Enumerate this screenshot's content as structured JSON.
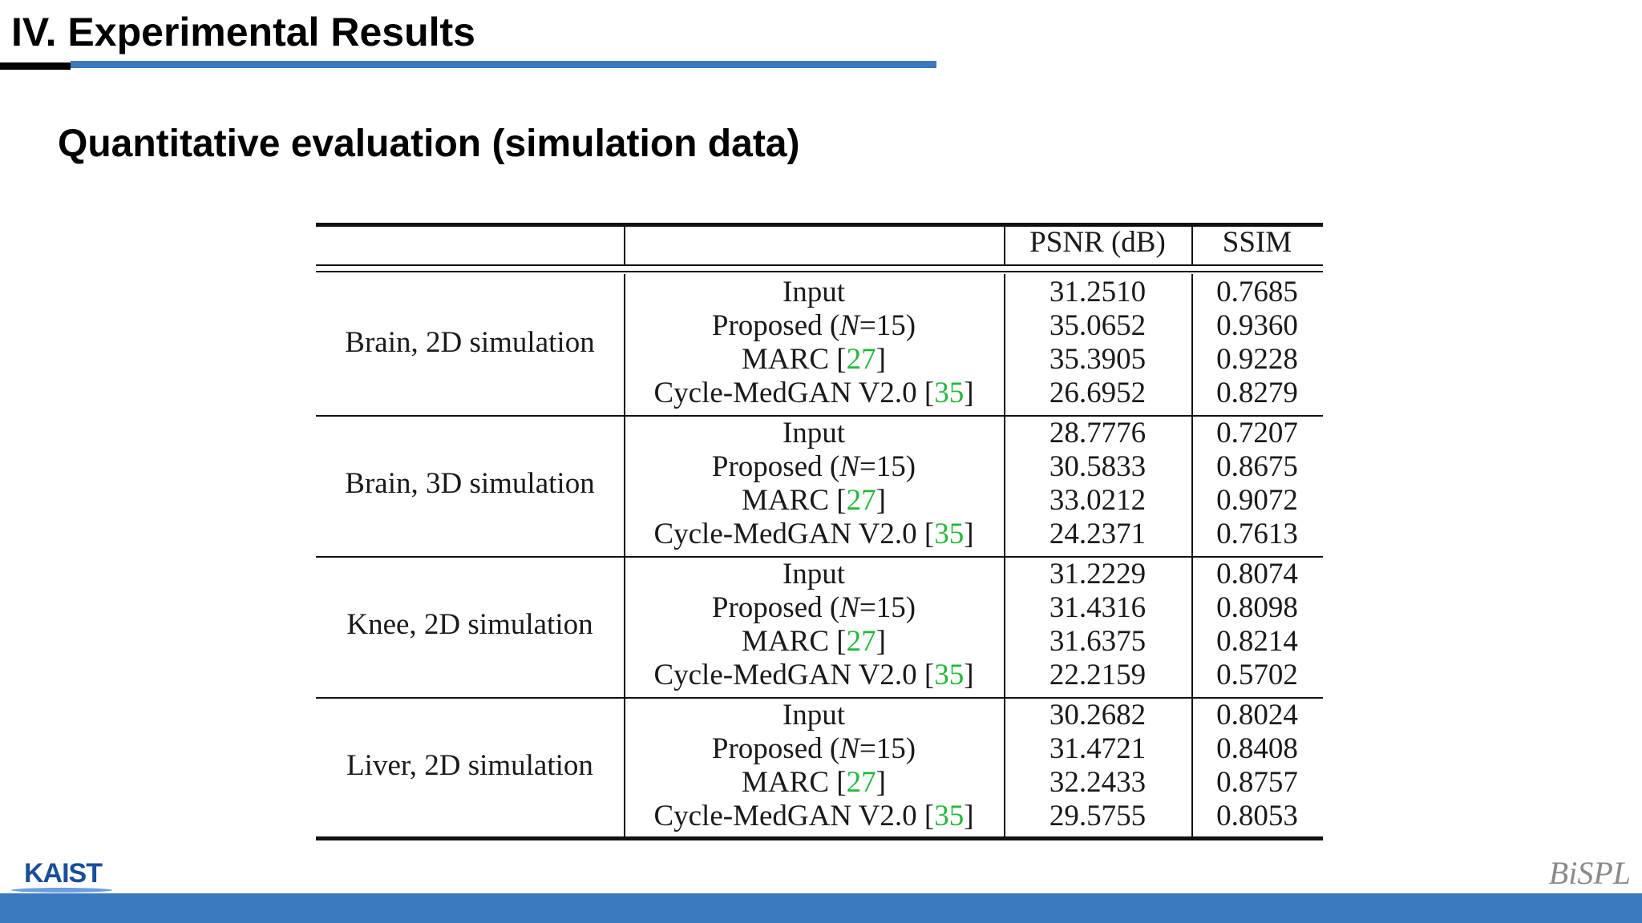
{
  "slide": {
    "section_title": "IV. Experimental Results",
    "subtitle": "Quantitative evaluation (simulation data)"
  },
  "table": {
    "headers": [
      "",
      "",
      "PSNR (dB)",
      "SSIM"
    ],
    "citation_color": "#22b83a",
    "groups": [
      {
        "label": "Brain, 2D simulation",
        "rows": [
          {
            "method": "Input",
            "cite": "",
            "psnr": "31.2510",
            "ssim": "0.7685"
          },
          {
            "method": "Proposed (N=15)",
            "cite": "",
            "psnr": "35.0652",
            "ssim": "0.9360"
          },
          {
            "method": "MARC",
            "cite": "27",
            "psnr": "35.3905",
            "ssim": "0.9228"
          },
          {
            "method": "Cycle-MedGAN V2.0",
            "cite": "35",
            "psnr": "26.6952",
            "ssim": "0.8279"
          }
        ]
      },
      {
        "label": "Brain, 3D simulation",
        "rows": [
          {
            "method": "Input",
            "cite": "",
            "psnr": "28.7776",
            "ssim": "0.7207"
          },
          {
            "method": "Proposed (N=15)",
            "cite": "",
            "psnr": "30.5833",
            "ssim": "0.8675"
          },
          {
            "method": "MARC",
            "cite": "27",
            "psnr": "33.0212",
            "ssim": "0.9072"
          },
          {
            "method": "Cycle-MedGAN V2.0",
            "cite": "35",
            "psnr": "24.2371",
            "ssim": "0.7613"
          }
        ]
      },
      {
        "label": "Knee, 2D simulation",
        "rows": [
          {
            "method": "Input",
            "cite": "",
            "psnr": "31.2229",
            "ssim": "0.8074"
          },
          {
            "method": "Proposed (N=15)",
            "cite": "",
            "psnr": "31.4316",
            "ssim": "0.8098"
          },
          {
            "method": "MARC",
            "cite": "27",
            "psnr": "31.6375",
            "ssim": "0.8214"
          },
          {
            "method": "Cycle-MedGAN V2.0",
            "cite": "35",
            "psnr": "22.2159",
            "ssim": "0.5702"
          }
        ]
      },
      {
        "label": "Liver, 2D simulation",
        "rows": [
          {
            "method": "Input",
            "cite": "",
            "psnr": "30.2682",
            "ssim": "0.8024"
          },
          {
            "method": "Proposed (N=15)",
            "cite": "",
            "psnr": "31.4721",
            "ssim": "0.8408"
          },
          {
            "method": "MARC",
            "cite": "27",
            "psnr": "32.2433",
            "ssim": "0.8757"
          },
          {
            "method": "Cycle-MedGAN V2.0",
            "cite": "35",
            "psnr": "29.5755",
            "ssim": "0.8053"
          }
        ]
      }
    ]
  },
  "footer": {
    "left_logo": "KAIST",
    "right_logo": "BiSPL",
    "bar_color": "#3a78c0"
  }
}
